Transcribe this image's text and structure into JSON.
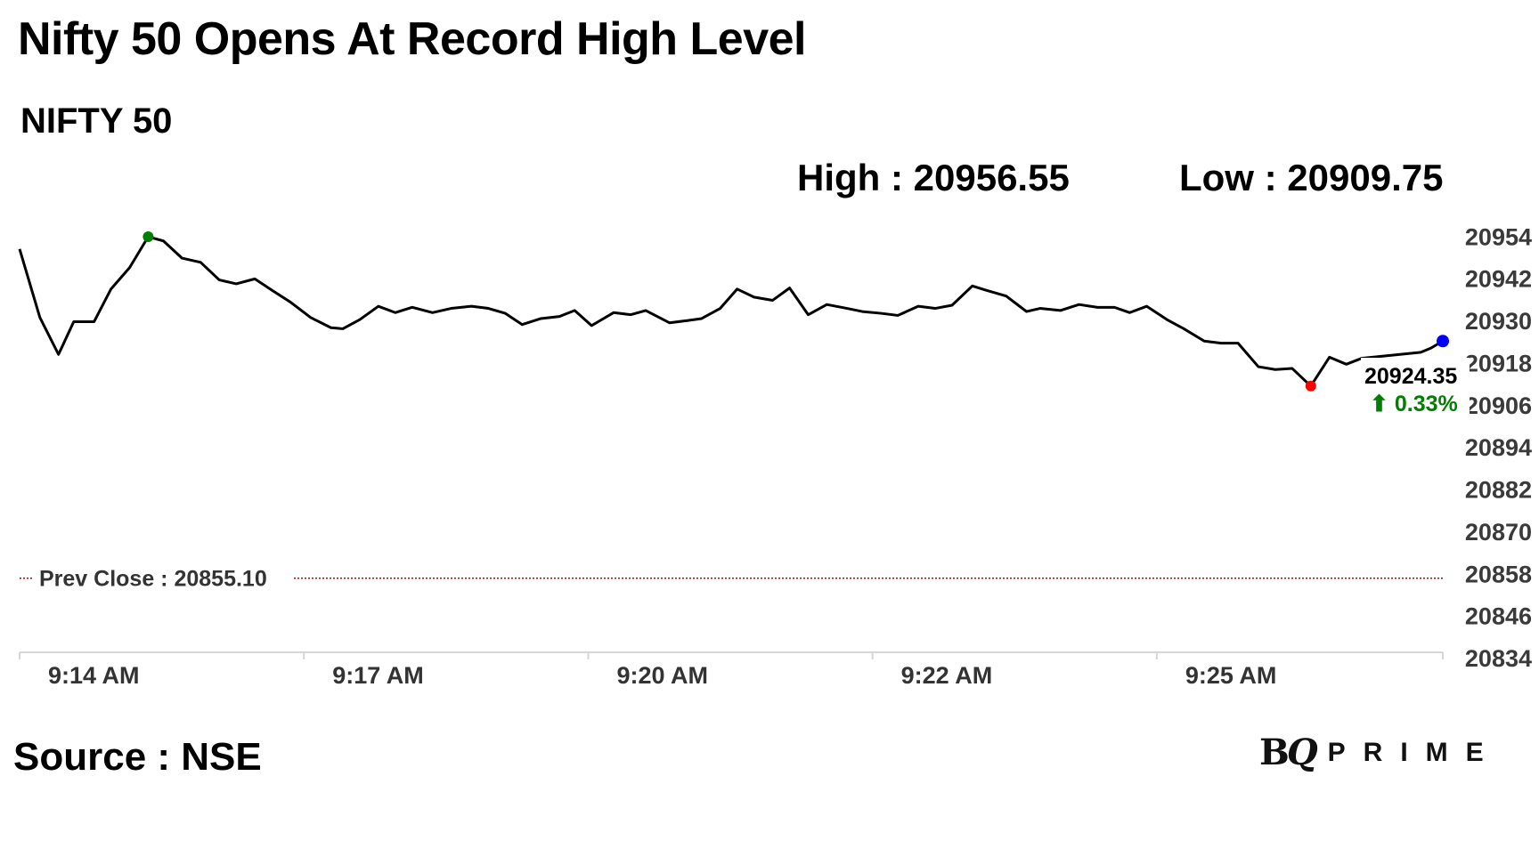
{
  "header": {
    "title": "Nifty 50 Opens At Record High Level",
    "subtitle": "NIFTY 50",
    "high_text": "High : 20956.55",
    "low_text": "Low : 20909.75"
  },
  "footer": {
    "source": "Source : NSE",
    "logo_text": "BQ PRIME"
  },
  "chart_data": {
    "type": "line",
    "title": "NIFTY 50",
    "colors": {
      "line": "#000000",
      "high_marker": "#008000",
      "low_marker": "#ff0000",
      "last_marker": "#0000ff",
      "prev_close_line": "#cc0000",
      "change_positive": "#008000"
    },
    "y_ticks": [
      "20954",
      "20942",
      "20930",
      "20918",
      "20906",
      "20894",
      "20882",
      "20870",
      "20858",
      "20846",
      "20834"
    ],
    "ylim": [
      20834,
      20954
    ],
    "x_ticks": [
      {
        "label": "9:14 AM",
        "time": "9:14:00"
      },
      {
        "label": "9:17 AM",
        "time": "9:16:48"
      },
      {
        "label": "9:20 AM",
        "time": "9:19:36"
      },
      {
        "label": "9:22 AM",
        "time": "9:22:24"
      },
      {
        "label": "9:25 AM",
        "time": "9:25:12"
      }
    ],
    "xlim": [
      "9:14:00",
      "9:28:01"
    ],
    "grid": false,
    "prev_close": {
      "label": "Prev Close : 20855.10",
      "value": 20855.1
    },
    "last_label": {
      "value": "20924.35",
      "change": "⬆ 0.33%"
    },
    "points": [
      [
        "9:14:00",
        20948.8
      ],
      [
        "9:14:12",
        20929.3
      ],
      [
        "9:14:23",
        20918.8
      ],
      [
        "9:14:32",
        20928.1
      ],
      [
        "9:14:44",
        20928.1
      ],
      [
        "9:14:54",
        20937.4
      ],
      [
        "9:15:05",
        20943.5
      ],
      [
        "9:15:16",
        20952.3
      ],
      [
        "9:15:25",
        20951.1
      ],
      [
        "9:15:36",
        20946.2
      ],
      [
        "9:15:47",
        20945.0
      ],
      [
        "9:15:58",
        20940.0
      ],
      [
        "9:16:08",
        20938.9
      ],
      [
        "9:16:19",
        20940.3
      ],
      [
        "9:16:29",
        20937.1
      ],
      [
        "9:16:40",
        20933.7
      ],
      [
        "9:16:52",
        20929.3
      ],
      [
        "9:17:04",
        20926.4
      ],
      [
        "9:17:11",
        20926.1
      ],
      [
        "9:17:21",
        20928.7
      ],
      [
        "9:17:32",
        20932.5
      ],
      [
        "9:17:42",
        20930.7
      ],
      [
        "9:17:52",
        20932.2
      ],
      [
        "9:18:04",
        20930.7
      ],
      [
        "9:18:15",
        20931.9
      ],
      [
        "9:18:27",
        20932.5
      ],
      [
        "9:18:37",
        20931.9
      ],
      [
        "9:18:47",
        20930.5
      ],
      [
        "9:18:57",
        20927.3
      ],
      [
        "9:19:08",
        20929.0
      ],
      [
        "9:19:19",
        20929.6
      ],
      [
        "9:19:28",
        20931.3
      ],
      [
        "9:19:38",
        20927.0
      ],
      [
        "9:19:51",
        20930.7
      ],
      [
        "9:20:01",
        20930.1
      ],
      [
        "9:20:10",
        20931.3
      ],
      [
        "9:20:24",
        20927.8
      ],
      [
        "9:20:34",
        20928.4
      ],
      [
        "9:20:43",
        20929.0
      ],
      [
        "9:20:54",
        20931.9
      ],
      [
        "9:21:04",
        20937.4
      ],
      [
        "9:21:14",
        20935.1
      ],
      [
        "9:21:25",
        20934.2
      ],
      [
        "9:21:35",
        20937.7
      ],
      [
        "9:21:46",
        20930.1
      ],
      [
        "9:21:57",
        20933.0
      ],
      [
        "9:22:09",
        20931.9
      ],
      [
        "9:22:18",
        20931.0
      ],
      [
        "9:22:29",
        20930.5
      ],
      [
        "9:22:39",
        20929.9
      ],
      [
        "9:22:51",
        20932.5
      ],
      [
        "9:23:01",
        20931.9
      ],
      [
        "9:23:11",
        20932.8
      ],
      [
        "9:23:23",
        20938.3
      ],
      [
        "9:23:31",
        20937.1
      ],
      [
        "9:23:43",
        20935.4
      ],
      [
        "9:23:55",
        20931.0
      ],
      [
        "9:24:03",
        20931.9
      ],
      [
        "9:24:15",
        20931.3
      ],
      [
        "9:24:26",
        20933.0
      ],
      [
        "9:24:37",
        20932.2
      ],
      [
        "9:24:47",
        20932.2
      ],
      [
        "9:24:56",
        20930.7
      ],
      [
        "9:25:06",
        20932.5
      ],
      [
        "9:25:18",
        20928.7
      ],
      [
        "9:25:28",
        20926.1
      ],
      [
        "9:25:40",
        20922.6
      ],
      [
        "9:25:50",
        20922.0
      ],
      [
        "9:26:00",
        20922.0
      ],
      [
        "9:26:12",
        20915.3
      ],
      [
        "9:26:22",
        20914.5
      ],
      [
        "9:26:32",
        20914.8
      ],
      [
        "9:26:43",
        20909.8
      ],
      [
        "9:26:54",
        20918.0
      ],
      [
        "9:27:04",
        20916.0
      ],
      [
        "9:27:13",
        20917.7
      ],
      [
        "9:27:48",
        20919.4
      ],
      [
        "9:27:54",
        20920.6
      ],
      [
        "9:28:01",
        20922.6
      ]
    ]
  }
}
